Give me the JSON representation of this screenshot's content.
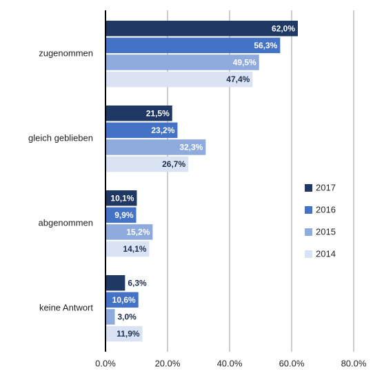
{
  "chart_data": {
    "type": "hbar",
    "categories": [
      "zugenommen",
      "gleich geblieben",
      "abgenommen",
      "keine Antwort"
    ],
    "series": [
      {
        "name": "2017",
        "color": "#1f3864",
        "values": [
          62.0,
          21.5,
          10.1,
          6.3
        ],
        "value_labels": [
          "62,0%",
          "21,5%",
          "10,1%",
          "6,3%"
        ]
      },
      {
        "name": "2016",
        "color": "#4472c4",
        "values": [
          56.3,
          23.2,
          9.9,
          10.6
        ],
        "value_labels": [
          "56,3%",
          "23,2%",
          "9,9%",
          "10,6%"
        ]
      },
      {
        "name": "2015",
        "color": "#8faadc",
        "values": [
          49.5,
          32.3,
          15.2,
          3.0
        ],
        "value_labels": [
          "49,5%",
          "32,3%",
          "15,2%",
          "3,0%"
        ]
      },
      {
        "name": "2014",
        "color": "#dae3f3",
        "values": [
          47.4,
          26.7,
          14.1,
          11.9
        ],
        "value_labels": [
          "47,4%",
          "26,7%",
          "14,1%",
          "11,9%"
        ]
      }
    ],
    "xlim": [
      0,
      80
    ],
    "xticks": [
      {
        "value": 0,
        "label": "0.0%"
      },
      {
        "value": 20,
        "label": "20.0%"
      },
      {
        "value": 40,
        "label": "40.0%"
      },
      {
        "value": 60,
        "label": "60.0%"
      },
      {
        "value": 80,
        "label": "80.0%"
      }
    ],
    "grid": true,
    "legend": "right"
  }
}
